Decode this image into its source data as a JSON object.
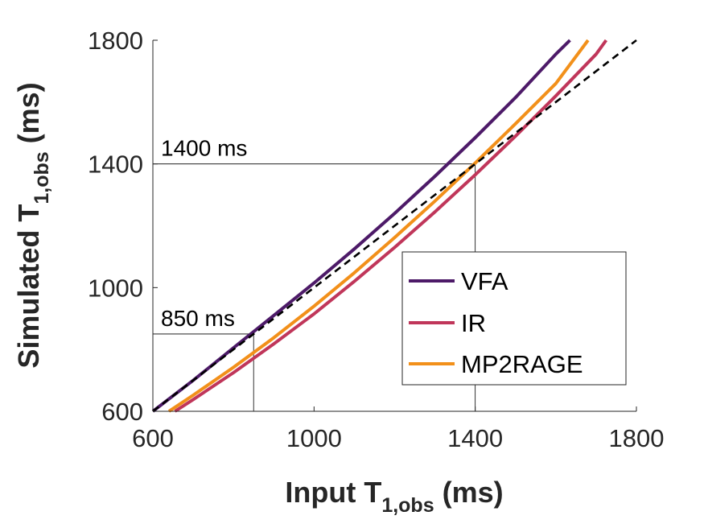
{
  "chart_data": {
    "type": "line",
    "xlabel_main": "Input T",
    "xlabel_sub": "1,obs",
    "xlabel_unit": " (ms)",
    "ylabel_main": "Simulated T",
    "ylabel_sub": "1,obs",
    "ylabel_unit": " (ms)",
    "xlim": [
      600,
      1800
    ],
    "ylim": [
      600,
      1800
    ],
    "xticks": [
      600,
      1000,
      1400,
      1800
    ],
    "yticks": [
      600,
      1000,
      1400,
      1800
    ],
    "xtick_labels": [
      "600",
      "1000",
      "1400",
      "1800"
    ],
    "ytick_labels": [
      "600",
      "1000",
      "1400",
      "1800"
    ],
    "grid": false,
    "legend_position": "lower-right",
    "identity_line": {
      "style": "dashed",
      "color": "#000000",
      "x": [
        600,
        1800
      ],
      "y": [
        600,
        1800
      ]
    },
    "series": [
      {
        "name": "VFA",
        "color": "#4d1a68",
        "x": [
          600,
          700,
          800,
          900,
          1000,
          1100,
          1200,
          1300,
          1400,
          1500,
          1600,
          1635
        ],
        "y": [
          600,
          700,
          805,
          910,
          1015,
          1125,
          1240,
          1360,
          1485,
          1615,
          1755,
          1800
        ]
      },
      {
        "name": "IR",
        "color": "#c0365a",
        "x": [
          655,
          700,
          800,
          900,
          1000,
          1100,
          1200,
          1300,
          1400,
          1500,
          1600,
          1700,
          1725
        ],
        "y": [
          600,
          638,
          725,
          818,
          915,
          1020,
          1130,
          1245,
          1365,
          1490,
          1620,
          1755,
          1800
        ]
      },
      {
        "name": "MP2RAGE",
        "color": "#f2901a",
        "x": [
          640,
          700,
          800,
          900,
          1000,
          1100,
          1200,
          1300,
          1400,
          1500,
          1600,
          1680
        ],
        "y": [
          600,
          652,
          742,
          838,
          940,
          1048,
          1162,
          1280,
          1403,
          1530,
          1660,
          1800
        ]
      }
    ],
    "annotations": [
      {
        "text": "1400 ms",
        "x": 1400,
        "y": 1400
      },
      {
        "text": "850 ms",
        "x": 850,
        "y": 850
      }
    ]
  }
}
